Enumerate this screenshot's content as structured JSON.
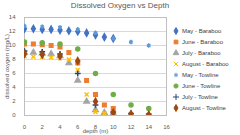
{
  "chart_data": {
    "type": "scatter",
    "title": "Dissolved Oxygen vs Depth",
    "x_label": "depth (m)",
    "y_label": "dissolved oxygen (mg/L)",
    "xlim": [
      0,
      16
    ],
    "xticks": [
      0,
      2,
      4,
      6,
      8,
      10,
      12,
      14,
      16
    ],
    "ylim": [
      0,
      14
    ],
    "yticks": [
      0,
      2,
      4,
      6,
      8,
      10,
      12,
      14
    ],
    "grid": "y",
    "legend": "right",
    "series": [
      {
        "name": "May - Baraboo",
        "color": "#4472c4",
        "marker": "diamond",
        "x": [
          0,
          1,
          2,
          3,
          4,
          5,
          6,
          7,
          8,
          9,
          10
        ],
        "values": [
          12.4,
          12.4,
          12.3,
          12.3,
          12.2,
          12.1,
          12.0,
          11.8,
          11.5,
          11.2,
          11.0
        ]
      },
      {
        "name": "June - Baraboo",
        "color": "#ed7d31",
        "marker": "square",
        "x": [
          0,
          1,
          2,
          3,
          4,
          5,
          6,
          7,
          8,
          9,
          10
        ],
        "values": [
          10.2,
          10.2,
          10.1,
          10.0,
          9.8,
          9.0,
          7.5,
          5.0,
          3.0,
          1.5,
          1.0
        ]
      },
      {
        "name": "July - Baraboo",
        "color": "#a5a5a5",
        "marker": "triangle",
        "x": [
          0,
          1,
          2,
          3,
          4,
          5,
          6,
          7,
          8,
          9,
          10
        ],
        "values": [
          9.0,
          9.0,
          8.9,
          8.8,
          8.5,
          7.5,
          5.0,
          2.0,
          0.8,
          0.4,
          0.3
        ]
      },
      {
        "name": "August - Baraboo",
        "color": "#ffc000",
        "marker": "times",
        "x": [
          0,
          1,
          2,
          3,
          4,
          5,
          6,
          7,
          8,
          9,
          10
        ],
        "values": [
          8.5,
          8.4,
          8.4,
          8.3,
          8.2,
          8.0,
          6.5,
          3.0,
          0.5,
          0.3,
          0.2
        ]
      },
      {
        "name": "May - Towline",
        "color": "#5b9bd5",
        "marker": "asterisk",
        "x": [
          0,
          2,
          4,
          6,
          8,
          10,
          12,
          14
        ],
        "values": [
          12.8,
          12.7,
          12.6,
          12.3,
          11.8,
          11.0,
          10.5,
          10.0
        ]
      },
      {
        "name": "June - Towline",
        "color": "#70ad47",
        "marker": "circle",
        "x": [
          0,
          2,
          4,
          6,
          8,
          10,
          12,
          14
        ],
        "values": [
          10.5,
          10.4,
          10.2,
          9.5,
          6.0,
          3.0,
          1.5,
          1.0
        ]
      },
      {
        "name": "July - Towline",
        "color": "#264478",
        "marker": "plus",
        "x": [
          0,
          2,
          4,
          6,
          8,
          10,
          12,
          14
        ],
        "values": [
          9.2,
          9.1,
          8.8,
          6.0,
          1.5,
          0.5,
          0.3,
          0.2
        ]
      },
      {
        "name": "August - Towline",
        "color": "#9e480e",
        "marker": "diamond",
        "x": [
          0,
          2,
          4,
          6,
          8,
          10,
          12,
          14
        ],
        "values": [
          8.8,
          8.7,
          8.5,
          7.8,
          2.0,
          0.4,
          0.2,
          0.1
        ]
      }
    ]
  }
}
